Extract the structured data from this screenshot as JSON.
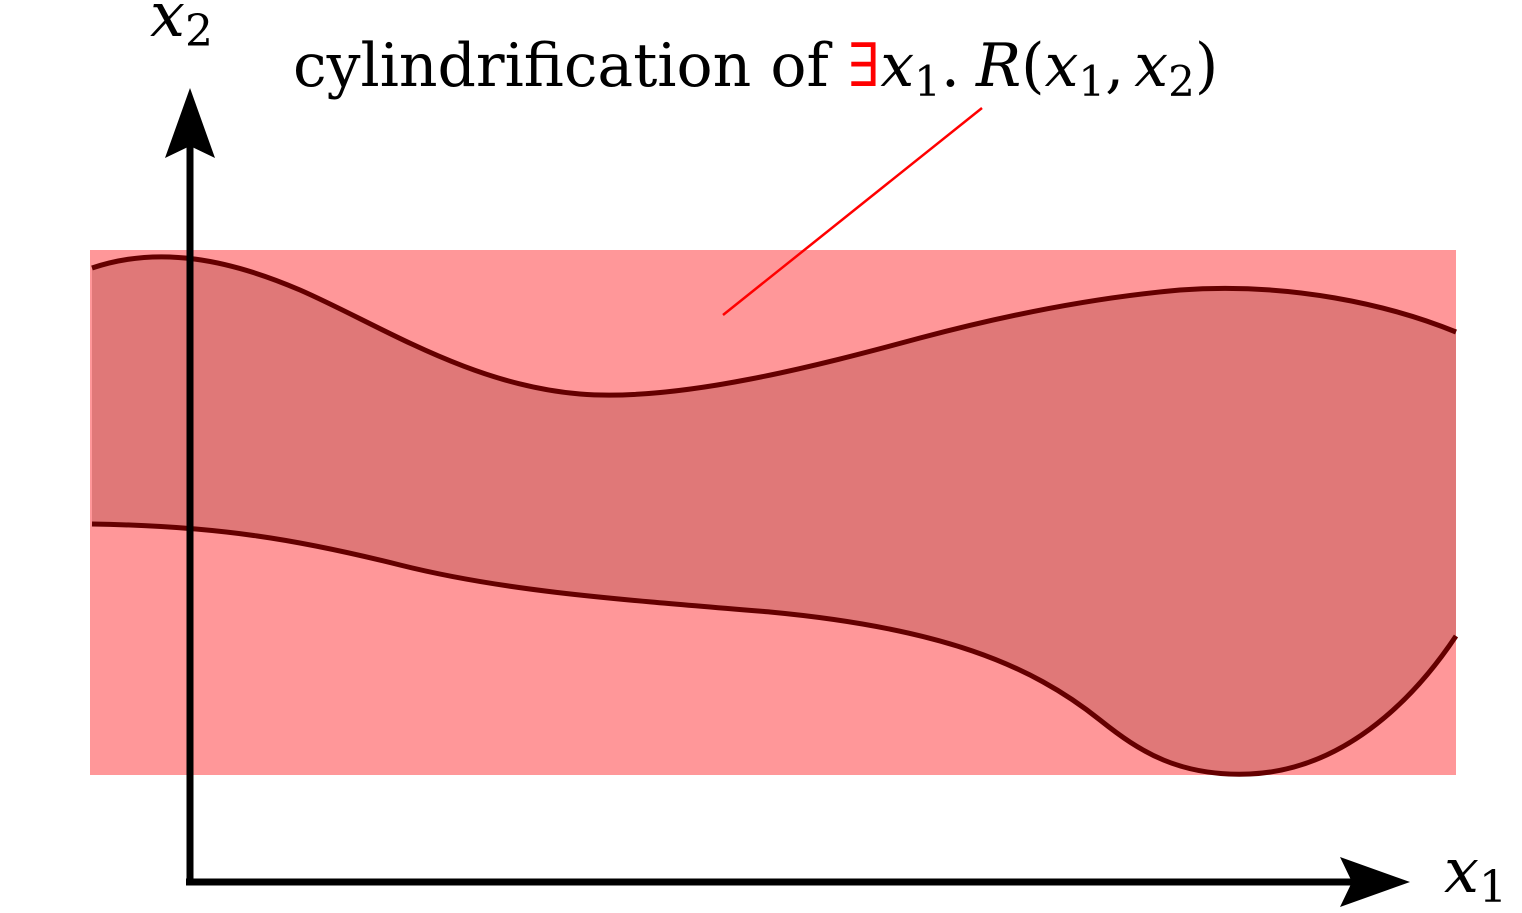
{
  "axes": {
    "x_label_var": "x",
    "x_label_sub": "1",
    "y_label_var": "x",
    "y_label_sub": "2"
  },
  "annotation": {
    "prefix": "cylindrification of ",
    "quantifier": "∃",
    "bound_var": "x",
    "bound_sub": "1",
    "dot": ".",
    "relation": "R",
    "open_paren": "(",
    "arg1_var": "x",
    "arg1_sub": "1",
    "comma": ",",
    "arg2_var": "x",
    "arg2_sub": "2",
    "close_paren": ")"
  },
  "colors": {
    "cylinder_fill": "#ff9799",
    "relation_fill": "#e07878",
    "relation_outline": "#650000",
    "leader_line": "#ff0000",
    "quantifier": "#ff0000",
    "axes": "#000000",
    "text": "#000000"
  }
}
